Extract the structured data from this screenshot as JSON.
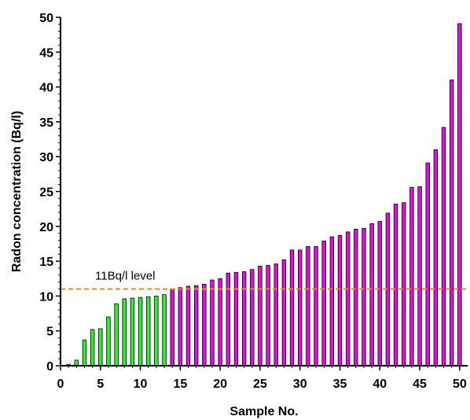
{
  "chart_data": {
    "type": "bar",
    "xlabel": "Sample No.",
    "ylabel": "Radon concentration (Bq/l)",
    "xlim": [
      0,
      51
    ],
    "ylim": [
      0,
      50
    ],
    "xticks": [
      0,
      5,
      10,
      15,
      20,
      25,
      30,
      35,
      40,
      45,
      50
    ],
    "yticks": [
      0,
      5,
      10,
      15,
      20,
      25,
      30,
      35,
      40,
      45,
      50
    ],
    "grid": false,
    "threshold": {
      "value": 11,
      "label": "11Bq/l level",
      "color": "#f58220",
      "style": "dashed"
    },
    "colors": {
      "below": "#33ee33",
      "above": "#dd11dd",
      "edge": "#000000"
    },
    "x": [
      1,
      2,
      3,
      4,
      5,
      6,
      7,
      8,
      9,
      10,
      11,
      12,
      13,
      14,
      15,
      16,
      17,
      18,
      19,
      20,
      21,
      22,
      23,
      24,
      25,
      26,
      27,
      28,
      29,
      30,
      31,
      32,
      33,
      34,
      35,
      36,
      37,
      38,
      39,
      40,
      41,
      42,
      43,
      44,
      45,
      46,
      47,
      48,
      49,
      50
    ],
    "values": [
      0.2,
      0.8,
      3.7,
      5.2,
      5.3,
      7.0,
      8.9,
      9.6,
      9.7,
      9.8,
      9.9,
      10.0,
      10.2,
      11.0,
      11.2,
      11.4,
      11.5,
      11.7,
      12.3,
      12.5,
      13.3,
      13.4,
      13.5,
      13.8,
      14.3,
      14.4,
      14.6,
      15.2,
      16.6,
      16.6,
      17.1,
      17.1,
      17.9,
      18.5,
      18.7,
      19.2,
      19.6,
      19.7,
      20.4,
      20.7,
      21.9,
      23.2,
      23.4,
      25.6,
      25.7,
      29.1,
      31.0,
      34.2,
      41.0,
      49.1
    ]
  }
}
